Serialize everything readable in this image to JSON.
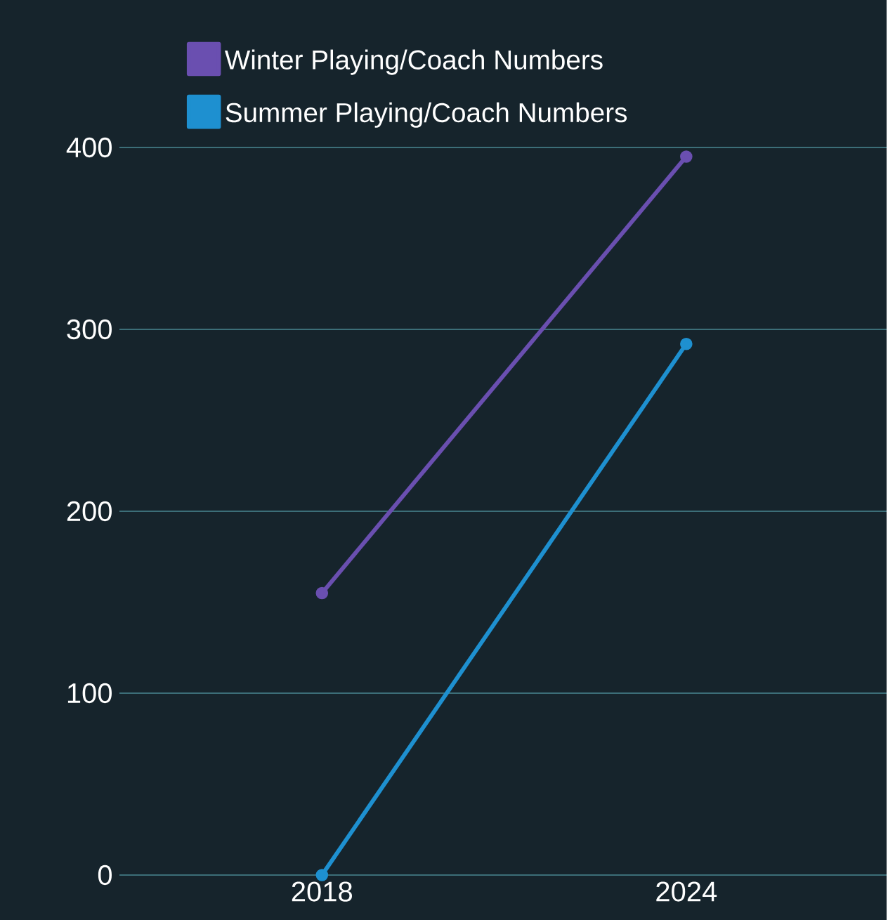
{
  "chart_data": {
    "type": "line",
    "categories": [
      "2018",
      "2024"
    ],
    "series": [
      {
        "name": "Winter Playing/Coach Numbers",
        "color": "#6a4fb0",
        "values": [
          155,
          395
        ]
      },
      {
        "name": "Summer Playing/Coach Numbers",
        "color": "#1e90d0",
        "values": [
          0,
          292
        ]
      }
    ],
    "ylim": [
      0,
      400
    ],
    "yticks": [
      0,
      100,
      200,
      300,
      400
    ],
    "grid": "y",
    "legend": "top left",
    "marker": "circle",
    "line_style": "solid"
  }
}
